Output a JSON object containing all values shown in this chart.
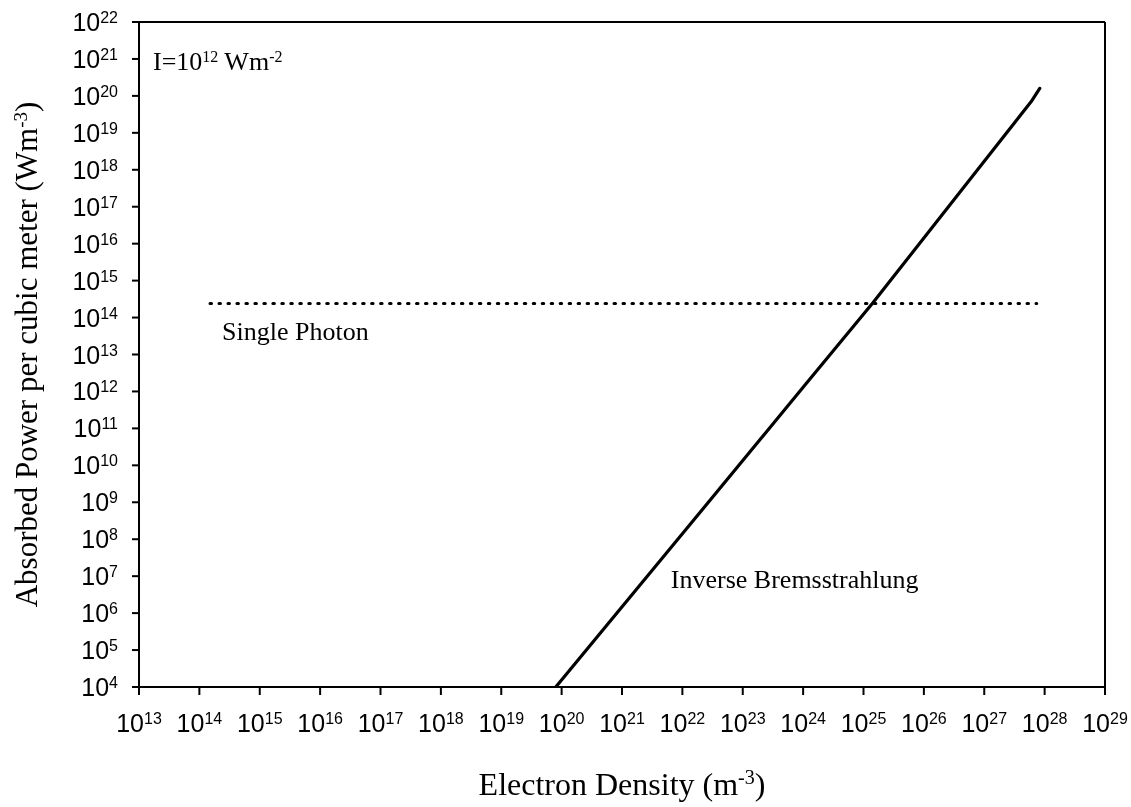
{
  "chart_data": {
    "type": "line",
    "xlabel": "Electron Density (m$^{-3}$)",
    "ylabel": "Absorbed Power per cubic meter (Wm$^{-3}$)",
    "annotations": [
      "I=10$^{12}$ Wm$^{-2}$"
    ],
    "log": "xy",
    "xlim": [
      10000000000000.0,
      1e+29
    ],
    "ylim": [
      10000.0,
      1e+22
    ],
    "xticks": [
      {
        "value": 10000000000000.0,
        "label": "10$^{13}$"
      },
      {
        "value": 100000000000000.0,
        "label": "10$^{14}$"
      },
      {
        "value": 1000000000000000.0,
        "label": "10$^{15}$"
      },
      {
        "value": 1e+16,
        "label": "10$^{16}$"
      },
      {
        "value": 1e+17,
        "label": "10$^{17}$"
      },
      {
        "value": 1e+18,
        "label": "10$^{18}$"
      },
      {
        "value": 1e+19,
        "label": "10$^{19}$"
      },
      {
        "value": 1e+20,
        "label": "10$^{20}$"
      },
      {
        "value": 1e+21,
        "label": "10$^{21}$"
      },
      {
        "value": 1e+22,
        "label": "10$^{22}$"
      },
      {
        "value": 1e+23,
        "label": "10$^{23}$"
      },
      {
        "value": 1e+24,
        "label": "10$^{24}$"
      },
      {
        "value": 1e+25,
        "label": "10$^{25}$"
      },
      {
        "value": 1e+26,
        "label": "10$^{26}$"
      },
      {
        "value": 1e+27,
        "label": "10$^{27}$"
      },
      {
        "value": 1e+28,
        "label": "10$^{28}$"
      },
      {
        "value": 1e+29,
        "label": "10$^{29}$"
      }
    ],
    "yticks": [
      {
        "value": 10000.0,
        "label": "10$^{4}$"
      },
      {
        "value": 100000.0,
        "label": "10$^{5}$"
      },
      {
        "value": 1000000.0,
        "label": "10$^{6}$"
      },
      {
        "value": 10000000.0,
        "label": "10$^{7}$"
      },
      {
        "value": 100000000.0,
        "label": "10$^{8}$"
      },
      {
        "value": 1000000000.0,
        "label": "10$^{9}$"
      },
      {
        "value": 10000000000.0,
        "label": "10$^{10}$"
      },
      {
        "value": 100000000000.0,
        "label": "10$^{11}$"
      },
      {
        "value": 1000000000000.0,
        "label": "10$^{12}$"
      },
      {
        "value": 10000000000000.0,
        "label": "10$^{13}$"
      },
      {
        "value": 100000000000000.0,
        "label": "10$^{14}$"
      },
      {
        "value": 1000000000000000.0,
        "label": "10$^{15}$"
      },
      {
        "value": 1e+16,
        "label": "10$^{16}$"
      },
      {
        "value": 1e+17,
        "label": "10$^{17}$"
      },
      {
        "value": 1e+18,
        "label": "10$^{18}$"
      },
      {
        "value": 1e+19,
        "label": "10$^{19}$"
      },
      {
        "value": 1e+20,
        "label": "10$^{20}$"
      },
      {
        "value": 1e+21,
        "label": "10$^{21}$"
      },
      {
        "value": 1e+22,
        "label": "10$^{22}$"
      }
    ],
    "series": [
      {
        "name": "Single Photon",
        "color": "#000000",
        "line_style": "dotted",
        "x": [
          150000000000000.0,
          7.4e+27
        ],
        "values": [
          240000000000000.0,
          240000000000000.0
        ]
      },
      {
        "name": "Inverse Bremsstrahlung",
        "color": "#000000",
        "line_style": "solid",
        "x": [
          8e+19,
          1e+22,
          1e+24,
          1.4e+25,
          1e+27,
          6e+27,
          8.3e+27
        ],
        "values": [
          10000.0,
          140000000.0,
          1300000000000.0,
          240000000000000.0,
          1.7e+18,
          7e+19,
          1.6e+20
        ]
      }
    ]
  }
}
